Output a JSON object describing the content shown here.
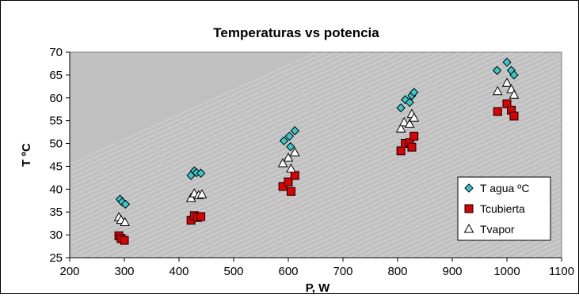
{
  "chart_data": {
    "type": "scatter",
    "title": "Temperaturas vs potencia",
    "xlabel": "P, W",
    "ylabel": "T ºC",
    "xlim": [
      200,
      1100
    ],
    "ylim": [
      25,
      70
    ],
    "xticks": [
      200,
      300,
      400,
      500,
      600,
      700,
      800,
      900,
      1000,
      1100
    ],
    "yticks": [
      25,
      30,
      35,
      40,
      45,
      50,
      55,
      60,
      65,
      70
    ],
    "grid": false,
    "legend_position": "bottom-right",
    "series": [
      {
        "name": "T agua ºC",
        "marker": "diamond",
        "color": "#33CCCC",
        "points": [
          [
            292,
            37.8
          ],
          [
            296,
            37.2
          ],
          [
            302,
            36.7
          ],
          [
            422,
            43.0
          ],
          [
            428,
            44.0
          ],
          [
            432,
            43.6
          ],
          [
            440,
            43.5
          ],
          [
            592,
            50.6
          ],
          [
            602,
            51.6
          ],
          [
            604,
            49.3
          ],
          [
            612,
            52.8
          ],
          [
            806,
            57.8
          ],
          [
            814,
            59.6
          ],
          [
            822,
            59.0
          ],
          [
            826,
            60.5
          ],
          [
            830,
            61.2
          ],
          [
            982,
            66.0
          ],
          [
            1000,
            67.8
          ],
          [
            1008,
            66.0
          ],
          [
            1013,
            65.0
          ]
        ]
      },
      {
        "name": "Tcubierta",
        "marker": "square",
        "color": "#E00000",
        "points": [
          [
            290,
            29.8
          ],
          [
            294,
            29.2
          ],
          [
            300,
            28.8
          ],
          [
            422,
            33.2
          ],
          [
            428,
            34.2
          ],
          [
            434,
            33.8
          ],
          [
            440,
            34.0
          ],
          [
            590,
            40.6
          ],
          [
            600,
            41.6
          ],
          [
            605,
            39.5
          ],
          [
            612,
            43.0
          ],
          [
            806,
            48.4
          ],
          [
            814,
            50.0
          ],
          [
            822,
            50.2
          ],
          [
            826,
            49.2
          ],
          [
            830,
            51.6
          ],
          [
            983,
            57.0
          ],
          [
            1000,
            58.7
          ],
          [
            1008,
            57.3
          ],
          [
            1013,
            56.0
          ]
        ]
      },
      {
        "name": "Tvapor",
        "marker": "triangle",
        "color": "#FFFFFF",
        "points": [
          [
            290,
            33.8
          ],
          [
            294,
            33.2
          ],
          [
            301,
            32.7
          ],
          [
            422,
            38.0
          ],
          [
            428,
            39.0
          ],
          [
            436,
            38.6
          ],
          [
            442,
            38.8
          ],
          [
            590,
            45.6
          ],
          [
            600,
            46.8
          ],
          [
            605,
            44.4
          ],
          [
            612,
            48.0
          ],
          [
            806,
            53.2
          ],
          [
            812,
            54.6
          ],
          [
            822,
            54.2
          ],
          [
            826,
            56.4
          ],
          [
            830,
            55.6
          ],
          [
            983,
            61.4
          ],
          [
            1000,
            63.2
          ],
          [
            1008,
            61.8
          ],
          [
            1013,
            60.6
          ]
        ]
      }
    ]
  },
  "colors": {
    "plot_background": "#C0C0C0",
    "diagonal_lines": "#D4D4D4",
    "border": "#000000"
  }
}
